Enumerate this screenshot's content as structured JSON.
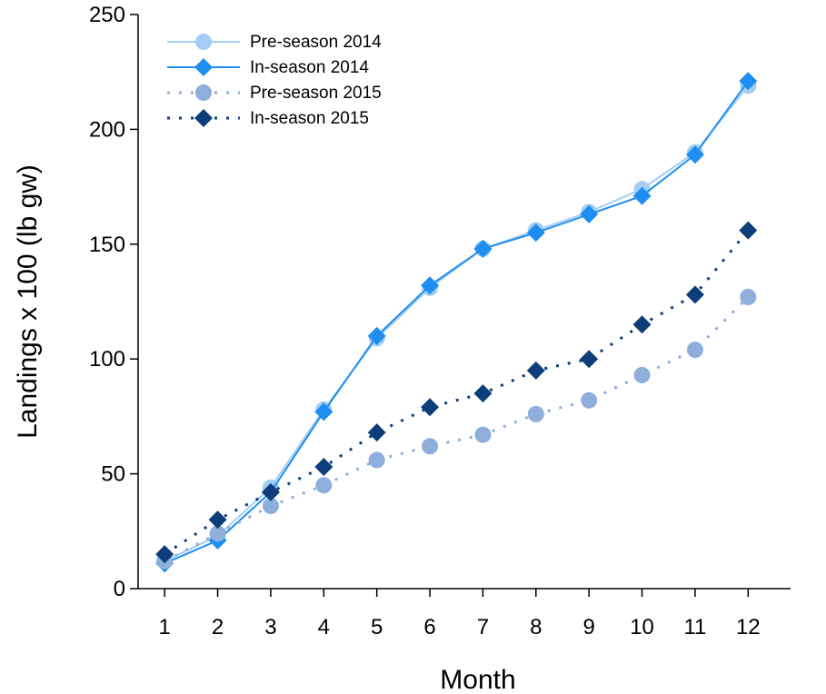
{
  "chart_data": {
    "type": "line",
    "title": "",
    "xlabel": "Month",
    "ylabel": "Landings x 100 (lb gw)",
    "x": [
      1,
      2,
      3,
      4,
      5,
      6,
      7,
      8,
      9,
      10,
      11,
      12
    ],
    "xlim": [
      0.5,
      12.8
    ],
    "ylim": [
      0,
      250
    ],
    "y_ticks": [
      0,
      50,
      100,
      150,
      200,
      250
    ],
    "grid": false,
    "legend": "top-left",
    "series": [
      {
        "name": "Pre-season 2014",
        "marker": "circle",
        "line": "solid",
        "color": "#a3cdf5",
        "values": [
          12,
          23,
          44,
          78,
          109,
          131,
          148,
          156,
          164,
          174,
          190,
          219
        ]
      },
      {
        "name": "In-season 2014",
        "marker": "diamond",
        "line": "solid",
        "color": "#1e8ef0",
        "values": [
          11,
          21,
          42,
          77,
          110,
          132,
          148,
          155,
          163,
          171,
          189,
          221
        ]
      },
      {
        "name": "Pre-season 2015",
        "marker": "circle",
        "line": "dotted",
        "color": "#8eaedc",
        "values": [
          12,
          24,
          36,
          45,
          56,
          62,
          67,
          76,
          82,
          93,
          104,
          127
        ]
      },
      {
        "name": "In-season 2015",
        "marker": "diamond",
        "line": "dotted",
        "color": "#0d3e7a",
        "values": [
          15,
          30,
          42,
          53,
          68,
          79,
          85,
          95,
          100,
          115,
          128,
          156
        ]
      }
    ]
  }
}
